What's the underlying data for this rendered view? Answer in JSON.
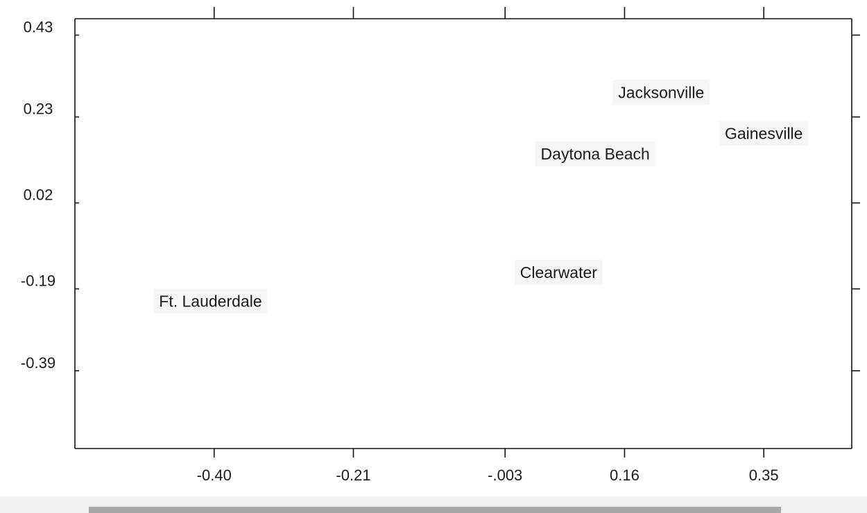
{
  "chart_data": {
    "type": "scatter",
    "title": "",
    "xlabel": "",
    "ylabel": "",
    "x_ticks": [
      "-0.40",
      "-0.21",
      "-.003",
      "0.16",
      "0.35"
    ],
    "y_ticks": [
      "0.43",
      "0.23",
      "0.02",
      "-0.19",
      "-0.39"
    ],
    "xlim": [
      -0.59,
      0.47
    ],
    "ylim": [
      -0.58,
      0.47
    ],
    "grid": false,
    "points": [
      {
        "label": "Jacksonville",
        "x": 0.21,
        "y": 0.29
      },
      {
        "label": "Gainesville",
        "x": 0.35,
        "y": 0.19
      },
      {
        "label": "Daytona Beach",
        "x": 0.12,
        "y": 0.14
      },
      {
        "label": "Clearwater",
        "x": 0.07,
        "y": -0.15
      },
      {
        "label": "Ft. Lauderdale",
        "x": -0.405,
        "y": -0.22
      }
    ]
  },
  "colors": {
    "axis": "#111111",
    "text": "#1a1a1a",
    "label_background": "#f6f6f6",
    "scrollbar_thumb": "#a8a8a8"
  }
}
